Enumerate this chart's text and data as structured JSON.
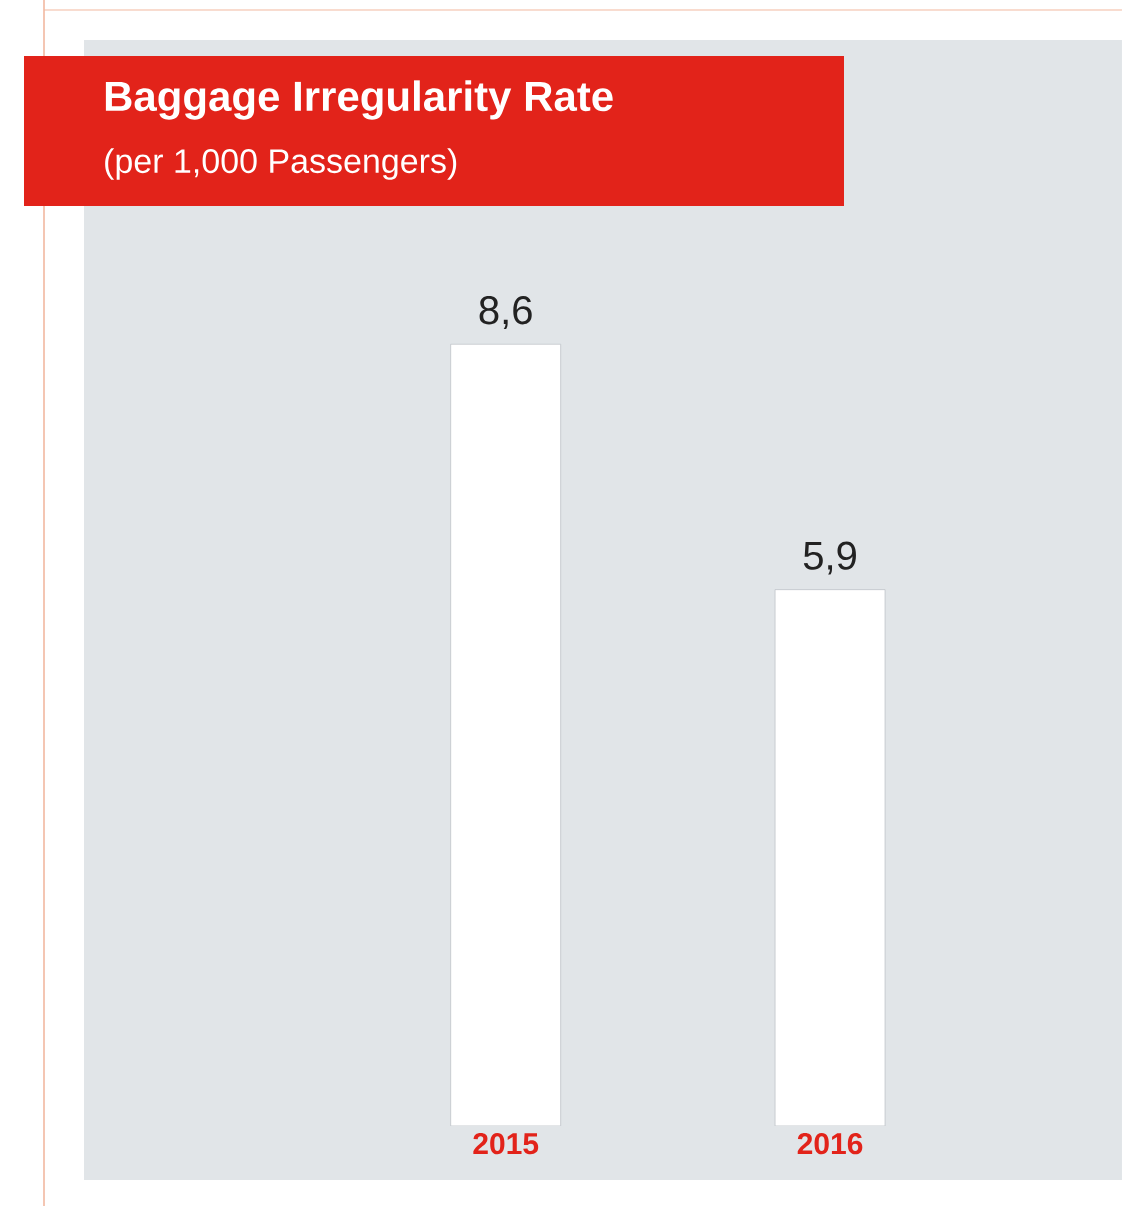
{
  "chart_data": {
    "type": "bar",
    "title": "Baggage Irregularity Rate",
    "subtitle": "(per 1,000 Passengers)",
    "categories": [
      "2015",
      "2016"
    ],
    "values": [
      8.6,
      5.9
    ],
    "value_labels": [
      "8,6",
      "5,9"
    ],
    "color": "#ffffff"
  }
}
